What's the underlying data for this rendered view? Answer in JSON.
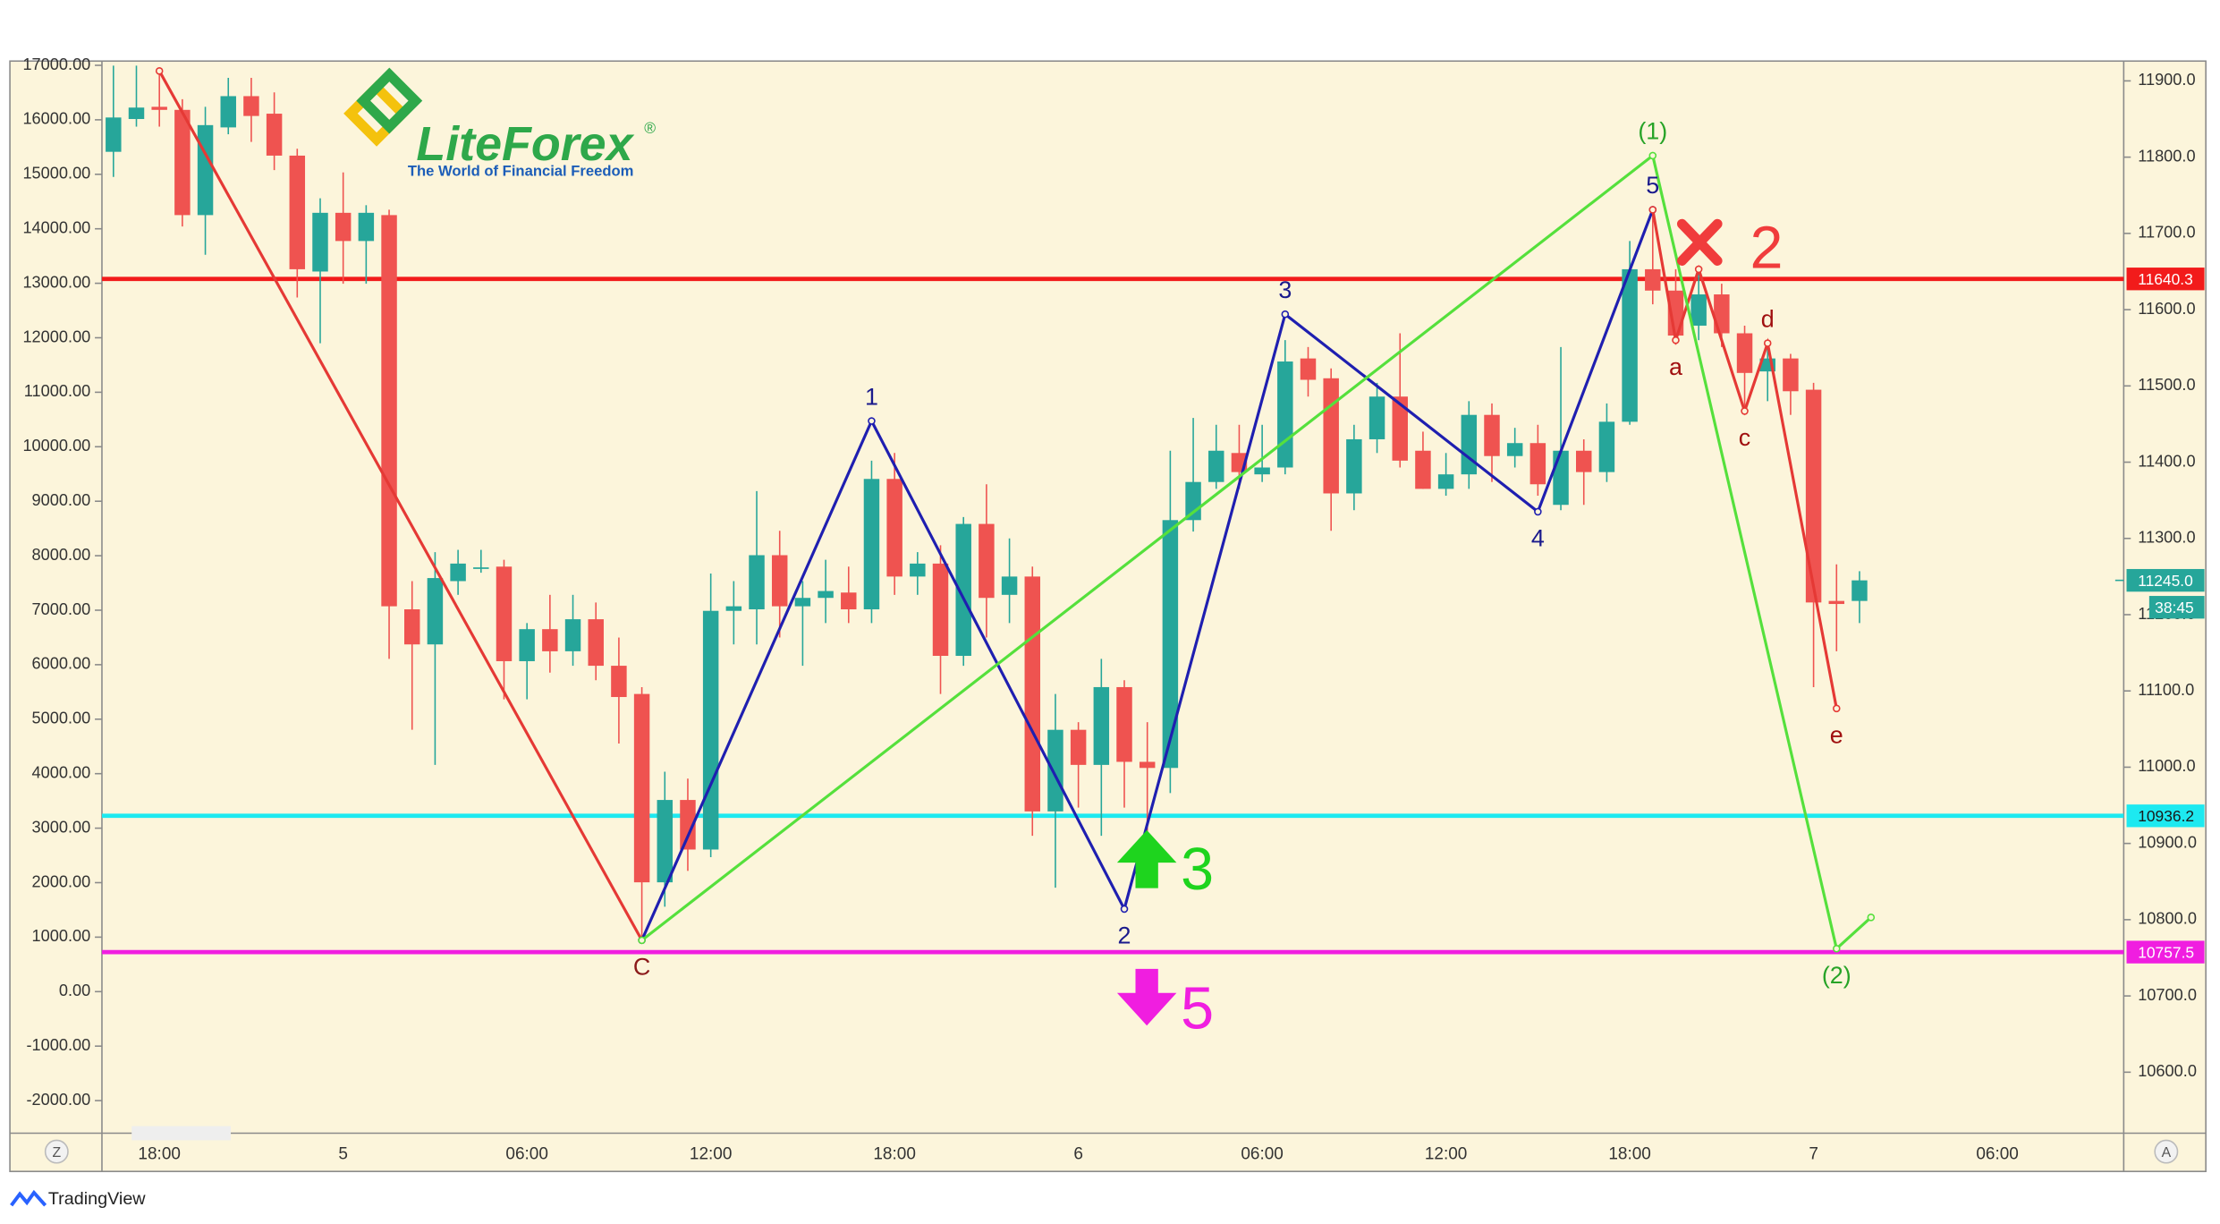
{
  "chart_data": {
    "type": "candlestick",
    "categories": [
      null,
      null,
      "18:00",
      null,
      null,
      null,
      null,
      null,
      null,
      null,
      "5",
      null,
      null,
      null,
      null,
      null,
      null,
      null,
      "06:00",
      null,
      null,
      null,
      null,
      null,
      null,
      null,
      "12:00",
      null,
      null,
      null,
      null,
      null,
      null,
      null,
      "18:00",
      null,
      null,
      null,
      null,
      null,
      null,
      null,
      "6",
      null,
      null,
      null,
      null,
      null,
      null,
      null,
      "06:00",
      null,
      null,
      null,
      null,
      null,
      null,
      null,
      "12:00",
      null,
      null,
      null,
      null,
      null,
      null,
      null,
      "18:00",
      null,
      null,
      null,
      null,
      null,
      null,
      null,
      "7",
      null,
      null,
      null,
      null,
      null,
      null,
      null,
      "06:00",
      null,
      null,
      null,
      null,
      null
    ],
    "open": [
      11807,
      11850,
      11866,
      11862,
      11724,
      11839,
      11880,
      11857,
      11802,
      11650,
      11727,
      11690,
      11724,
      11207,
      11161,
      11244,
      11260,
      11263,
      11139,
      11181,
      11152,
      11194,
      11133,
      11096,
      10849,
      10957,
      10892,
      11205,
      11207,
      11278,
      11211,
      11222,
      11229,
      11207,
      11378,
      11250,
      11267,
      11146,
      11319,
      11226,
      11250,
      10942,
      11049,
      11003,
      11105,
      11007,
      10999,
      11324,
      11374,
      11412,
      11384,
      11393,
      11536,
      11510,
      11359,
      11430,
      11486,
      11415,
      11365,
      11384,
      11462,
      11408,
      11425,
      11344,
      11415,
      11387,
      11453,
      11653,
      11625,
      11579,
      11620,
      11569,
      11519,
      11536,
      11495,
      11218,
      11218,
      null,
      null,
      null,
      null,
      null,
      null,
      null,
      null,
      null,
      null,
      null
    ],
    "high": [
      11920,
      11920,
      11913,
      11876,
      11866,
      11904,
      11904,
      11885,
      11811,
      11746,
      11780,
      11737,
      11731,
      11244,
      11282,
      11285,
      11285,
      11272,
      11189,
      11226,
      11226,
      11216,
      11170,
      11105,
      10994,
      10985,
      11254,
      11244,
      11362,
      11310,
      11244,
      11272,
      11263,
      11402,
      11412,
      11282,
      11291,
      11328,
      11371,
      11300,
      11263,
      11096,
      11059,
      11142,
      11114,
      11059,
      11415,
      11458,
      11449,
      11449,
      11449,
      11560,
      11551,
      11523,
      11449,
      11504,
      11569,
      11440,
      11412,
      11480,
      11477,
      11445,
      11449,
      11551,
      11430,
      11477,
      11690,
      11727,
      11653,
      11657,
      11634,
      11579,
      11560,
      11542,
      11504,
      11266,
      11257,
      null,
      null,
      null,
      null,
      null,
      null,
      null,
      null,
      null,
      null,
      null
    ],
    "low": [
      11774,
      11840,
      11840,
      11709,
      11672,
      11830,
      11820,
      11783,
      11616,
      11556,
      11634,
      11634,
      11142,
      11049,
      11003,
      11226,
      11255,
      11089,
      11089,
      11124,
      11133,
      11114,
      11031,
      10772,
      10817,
      10864,
      10882,
      11161,
      11161,
      11170,
      11133,
      11189,
      11189,
      11189,
      11226,
      11226,
      11096,
      11133,
      11170,
      11189,
      10910,
      10842,
      10947,
      10910,
      10947,
      10910,
      10966,
      11309,
      11365,
      11365,
      11374,
      11384,
      11486,
      11310,
      11337,
      11412,
      11393,
      11365,
      11356,
      11365,
      11374,
      11393,
      11356,
      11337,
      11344,
      11374,
      11449,
      11607,
      11554,
      11560,
      11551,
      11467,
      11480,
      11462,
      11105,
      11152,
      11189,
      null,
      null,
      null,
      null,
      null,
      null,
      null,
      null,
      null,
      null,
      null
    ],
    "close": [
      11852,
      11865,
      11862,
      11724,
      11842,
      11880,
      11854,
      11802,
      11653,
      11727,
      11690,
      11727,
      11211,
      11161,
      11248,
      11267,
      11262,
      11139,
      11181,
      11152,
      11194,
      11133,
      11092,
      10849,
      10957,
      10892,
      11205,
      11211,
      11278,
      11211,
      11222,
      11231,
      11207,
      11378,
      11250,
      11267,
      11146,
      11319,
      11222,
      11250,
      10942,
      11049,
      11003,
      11105,
      11007,
      10999,
      11324,
      11374,
      11415,
      11387,
      11393,
      11532,
      11508,
      11359,
      11430,
      11486,
      11402,
      11365,
      11384,
      11462,
      11408,
      11425,
      11371,
      11415,
      11387,
      11453,
      11653,
      11625,
      11566,
      11620,
      11569,
      11517,
      11536,
      11493,
      11216,
      11214,
      11245,
      null,
      null,
      null,
      null,
      null,
      null,
      null,
      null,
      null,
      null,
      null
    ],
    "up_color": "#26a69a",
    "down_color": "#ef5350",
    "ylim": [
      10520,
      11926
    ],
    "yaxis_position": "right",
    "yticks": [
      {
        "value": 10600,
        "label": "10600.0"
      },
      {
        "value": 10700,
        "label": "10700.0"
      },
      {
        "value": 10800,
        "label": "10800.0"
      },
      {
        "value": 10900,
        "label": "10900.0"
      },
      {
        "value": 11000,
        "label": "11000.0"
      },
      {
        "value": 11100,
        "label": "11100.0"
      },
      {
        "value": 11200,
        "label": "11200.0"
      },
      {
        "value": 11300,
        "label": "11300.0"
      },
      {
        "value": 11400,
        "label": "11400.0"
      },
      {
        "value": 11500,
        "label": "11500.0"
      },
      {
        "value": 11600,
        "label": "11600.0"
      },
      {
        "value": 11700,
        "label": "11700.0"
      },
      {
        "value": 11800,
        "label": "11800.0"
      },
      {
        "value": 11900,
        "label": "11900.0"
      }
    ],
    "y2lim": [
      -2598,
      17078
    ],
    "y2axis_position": "left",
    "y2ticks": [
      {
        "value": 17000,
        "label": "17000.00"
      },
      {
        "value": 16000,
        "label": "16000.00"
      },
      {
        "value": 15000,
        "label": "15000.00"
      },
      {
        "value": 14000,
        "label": "14000.00"
      },
      {
        "value": 13000,
        "label": "13000.00"
      },
      {
        "value": 12000,
        "label": "12000.00"
      },
      {
        "value": 11000,
        "label": "11000.00"
      },
      {
        "value": 10000,
        "label": "10000.00"
      },
      {
        "value": 9000,
        "label": "9000.00"
      },
      {
        "value": 8000,
        "label": "8000.00"
      },
      {
        "value": 7000,
        "label": "7000.00"
      },
      {
        "value": 6000,
        "label": "6000.00"
      },
      {
        "value": 5000,
        "label": "5000.00"
      },
      {
        "value": 4000,
        "label": "4000.00"
      },
      {
        "value": 3000,
        "label": "3000.00"
      },
      {
        "value": 2000,
        "label": "2000.00"
      },
      {
        "value": 1000,
        "label": "1000.00"
      },
      {
        "value": 0,
        "label": "0.00"
      },
      {
        "value": -1000,
        "label": "-1000.00"
      },
      {
        "value": -2000,
        "label": "-2000.00"
      }
    ],
    "grid": false,
    "hlines": [
      {
        "value": 11640.3,
        "label": "11640.3",
        "color": "#f21b1b",
        "text_color": "#ffffff"
      },
      {
        "value": 10936.2,
        "label": "10936.2",
        "color": "#1de9f0",
        "text_color": "#1a1a1a"
      },
      {
        "value": 10757.5,
        "label": "10757.5",
        "color": "#f01ee0",
        "text_color": "#ffffff"
      }
    ],
    "last_price": {
      "value": 11245,
      "label": "11245.0",
      "color": "#26a69a"
    },
    "countdown": "38:45",
    "waves": [
      {
        "color": "#e53935",
        "x": [
          2,
          23
        ],
        "values": [
          11913,
          10773
        ],
        "labels": [
          null,
          "C"
        ],
        "label_color": "#8b1a1a"
      },
      {
        "color": "#1f1fb0",
        "x": [
          23,
          33,
          44,
          51,
          62,
          67
        ],
        "values": [
          10773,
          11454,
          10814,
          11594,
          11335,
          11731
        ],
        "labels": [
          null,
          "1",
          "2",
          "3",
          "4",
          "5"
        ],
        "label_color": "#1a1a8c"
      },
      {
        "color": "#e53935",
        "x": [
          67,
          68,
          69,
          71,
          72,
          75
        ],
        "values": [
          11731,
          11560,
          11653,
          11467,
          11556,
          11077
        ],
        "labels": [
          null,
          "a",
          null,
          "c",
          "d",
          "e"
        ],
        "label_color": "#a01010"
      },
      {
        "color": "#55e03c",
        "x": [
          23,
          67,
          75,
          76.5
        ],
        "values": [
          10773,
          11802,
          10762,
          10803
        ],
        "labels": [
          null,
          "(1)",
          "(2)",
          null
        ],
        "label_color": "#27a327"
      }
    ],
    "annotations": [
      {
        "text": "2",
        "color": "#f03c3c"
      },
      {
        "text": "3",
        "color": "#1ed41e"
      },
      {
        "text": "5",
        "color": "#f01ee0"
      }
    ]
  },
  "logo": {
    "name": "LiteForex",
    "mark": "®",
    "tagline": "The World of Financial Freedom"
  },
  "controls": {
    "left": "Z",
    "right": "A"
  },
  "footer": "TradingView"
}
